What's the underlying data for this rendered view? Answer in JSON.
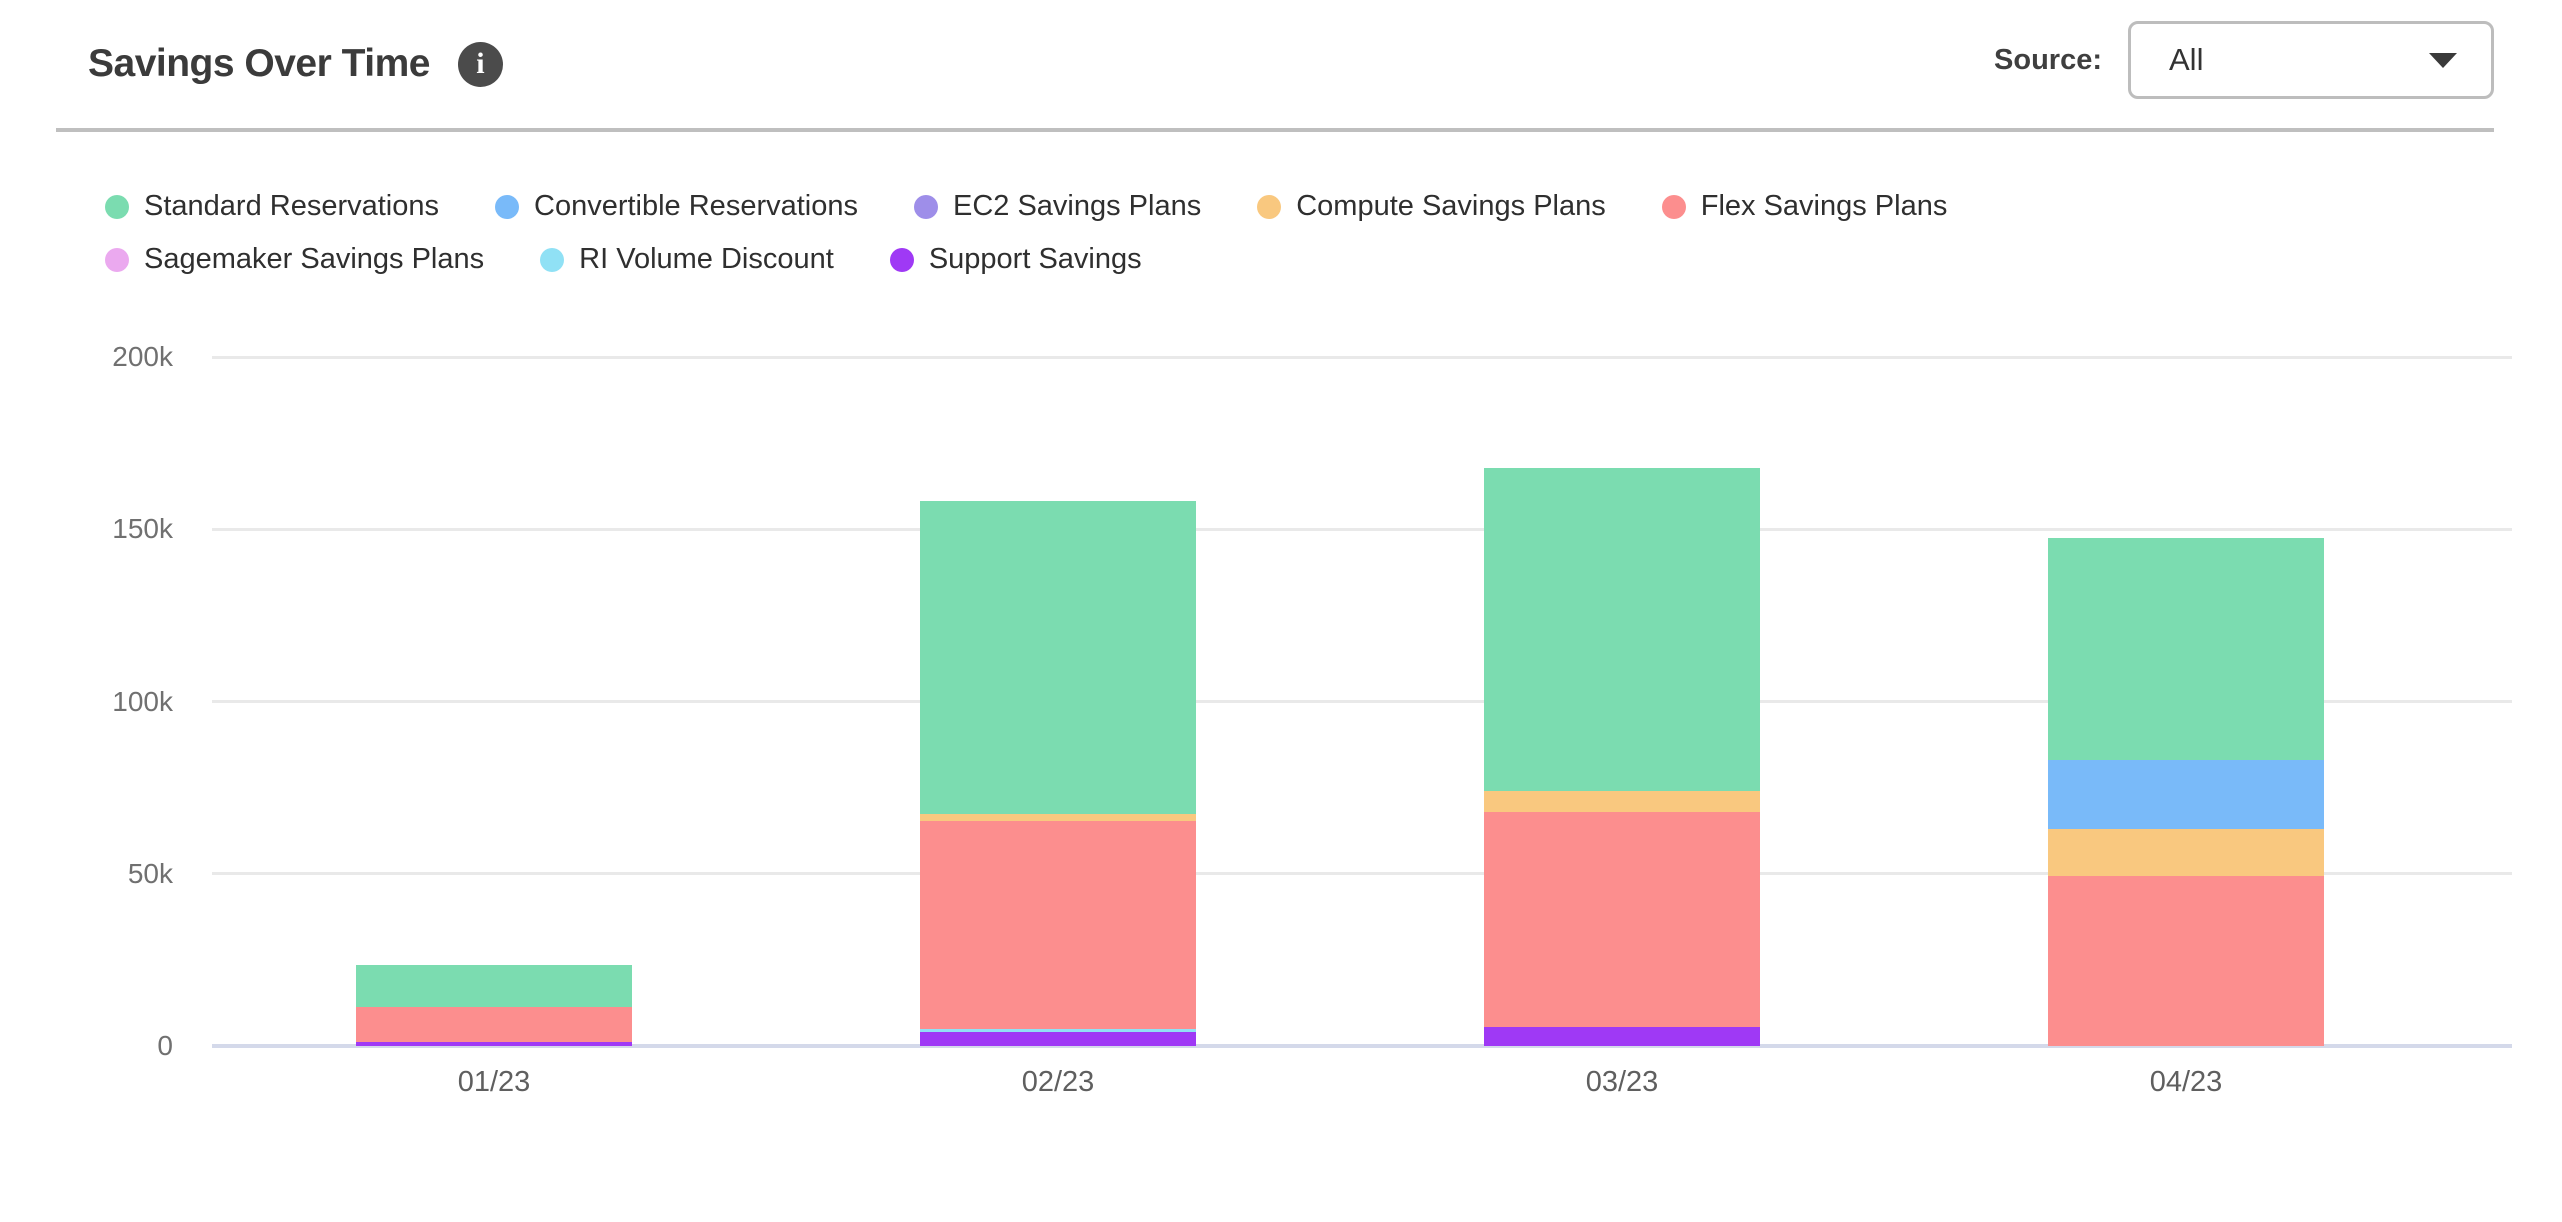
{
  "header": {
    "title": "Savings Over Time",
    "info_icon_glyph": "i",
    "source_label": "Source:",
    "source_value": "All"
  },
  "chart_data": {
    "type": "bar",
    "subtype": "stacked-vertical",
    "title": "Savings Over Time",
    "categories": [
      "01/23",
      "02/23",
      "03/23",
      "04/23"
    ],
    "series": [
      {
        "name": "Standard Reservations",
        "color": "#7bdcb0",
        "values": [
          12300,
          90900,
          93700,
          64600
        ]
      },
      {
        "name": "Convertible Reservations",
        "color": "#79baf9",
        "values": [
          0,
          0,
          0,
          19900
        ]
      },
      {
        "name": "EC2 Savings Plans",
        "color": "#9e8ee9",
        "values": [
          0,
          0,
          0,
          0
        ]
      },
      {
        "name": "Compute Savings Plans",
        "color": "#f9c87f",
        "values": [
          0,
          2200,
          6300,
          13700
        ]
      },
      {
        "name": "Flex Savings Plans",
        "color": "#fc8e8e",
        "values": [
          10100,
          60200,
          62300,
          49400
        ]
      },
      {
        "name": "Sagemaker Savings Plans",
        "color": "#eba9ef",
        "values": [
          0,
          0,
          0,
          0
        ]
      },
      {
        "name": "RI Volume Discount",
        "color": "#90e1f5",
        "values": [
          0,
          800,
          0,
          0
        ]
      },
      {
        "name": "Support Savings",
        "color": "#9f39f5",
        "values": [
          1100,
          4200,
          5500,
          0
        ]
      }
    ],
    "stack_totals": [
      23500,
      158300,
      167800,
      147600
    ],
    "y_ticks": [
      "0",
      "50k",
      "100k",
      "150k",
      "200k"
    ],
    "y_tick_values": [
      0,
      50000,
      100000,
      150000,
      200000
    ],
    "ylim": [
      0,
      200000
    ],
    "xlabel": "",
    "ylabel": "",
    "grid": true,
    "stack_order": "reverse-legend-order",
    "legend_position": "top-left"
  }
}
